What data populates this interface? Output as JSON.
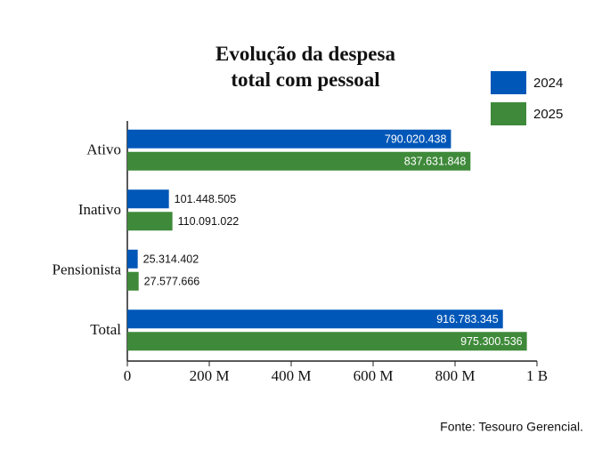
{
  "chart_data": {
    "type": "barh",
    "title": "Evolução da despesa total com pessoal",
    "categories": [
      "Ativo",
      "Inativo",
      "Pensionista",
      "Total"
    ],
    "series": [
      {
        "name": "2024",
        "color": "#0057b8",
        "values": [
          790020438,
          101448505,
          25314402,
          916783345
        ],
        "value_labels": [
          "790.020.438",
          "101.448.505",
          "25.314.402",
          "916.783.345"
        ]
      },
      {
        "name": "2025",
        "color": "#3f8a3a",
        "values": [
          837631848,
          110091022,
          27577666,
          975300536
        ],
        "value_labels": [
          "837.631.848",
          "110.091.022",
          "27.577.666",
          "975.300.536"
        ]
      }
    ],
    "xlim": [
      0,
      1000000000
    ],
    "xticks": [
      0,
      {
        "value": 200000000,
        "label": "200 M"
      },
      {
        "value": 400000000,
        "label": "400 M"
      },
      {
        "value": 600000000,
        "label": "600 M"
      },
      {
        "value": 800000000,
        "label": "800 M"
      },
      {
        "value": 1000000000,
        "label": "1 B"
      }
    ],
    "legend": "top-right",
    "source": "Fonte: Tesouro Gerencial."
  }
}
